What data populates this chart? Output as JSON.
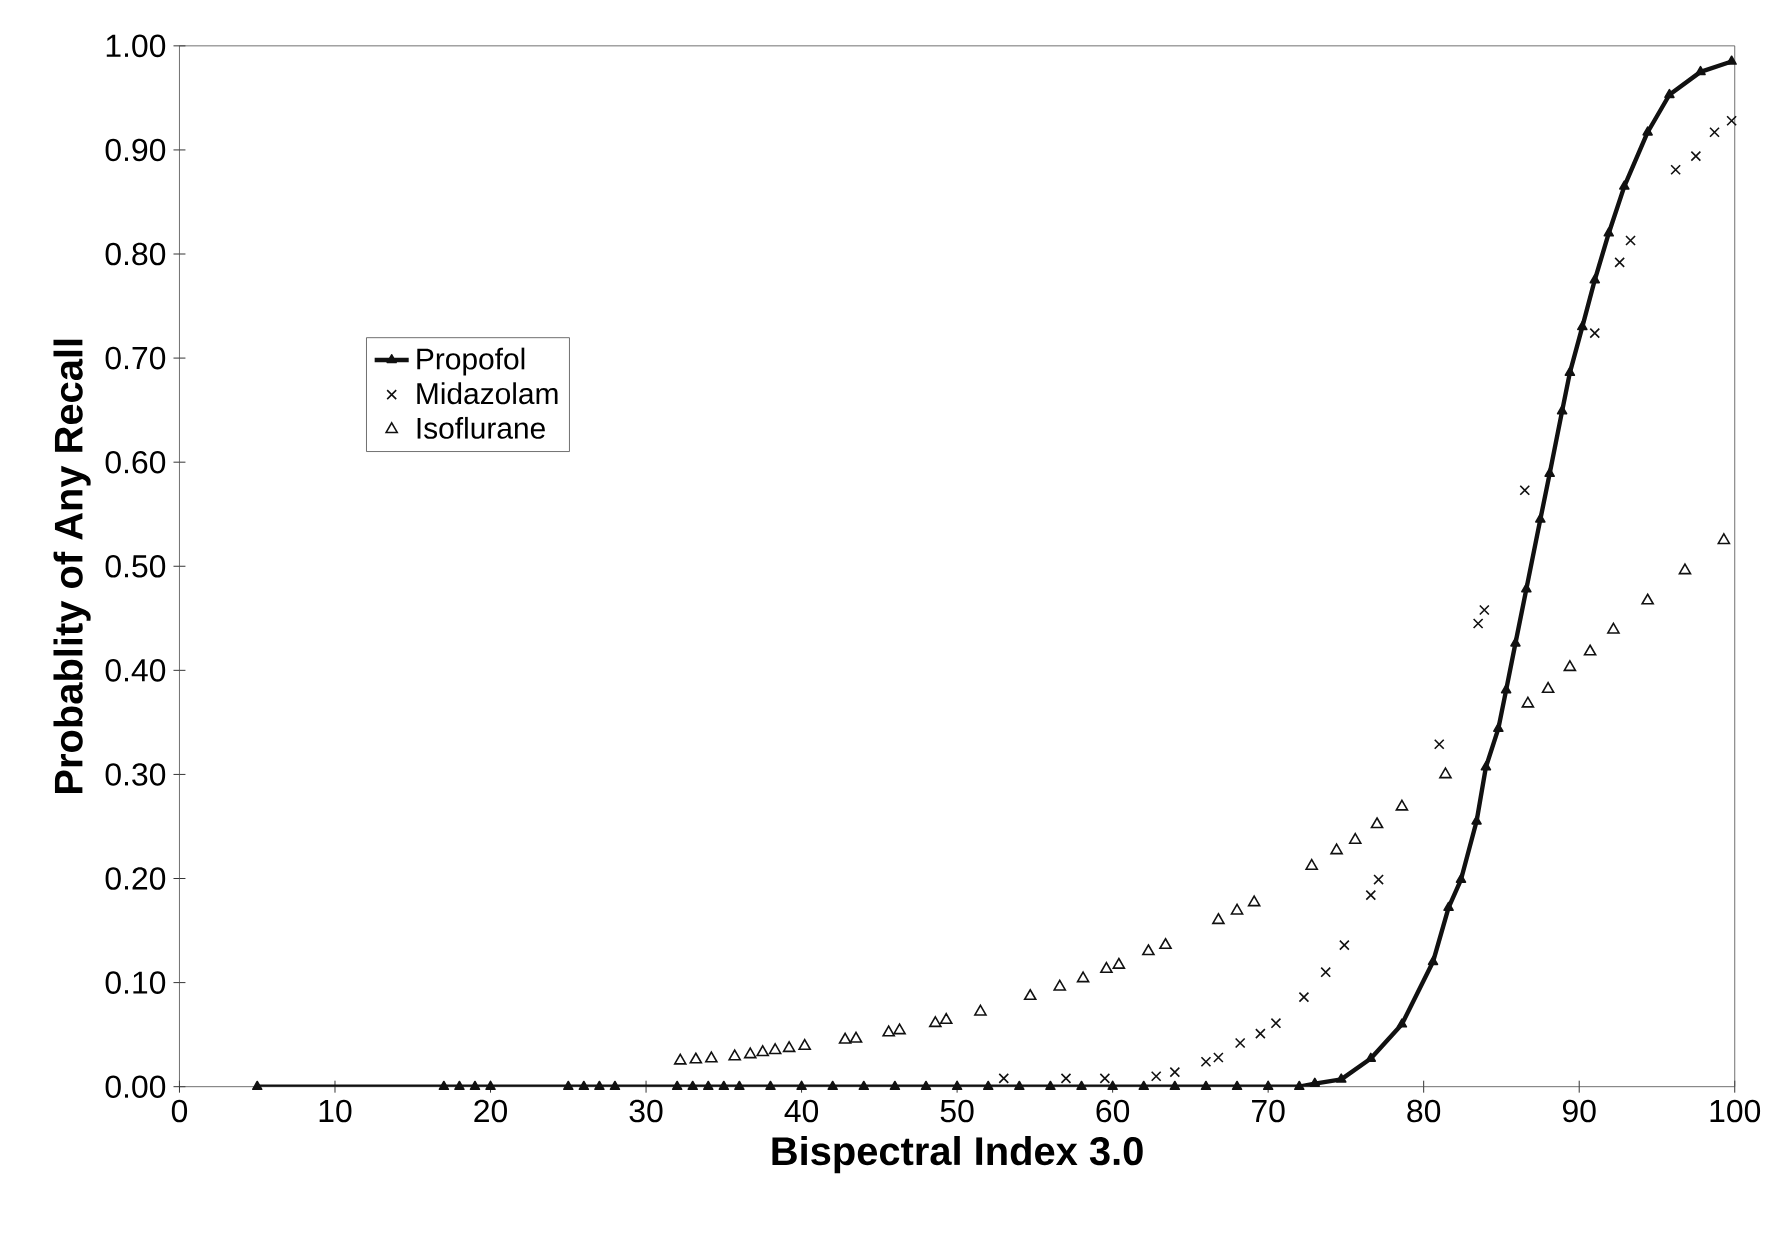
{
  "chart_data": {
    "type": "scatter",
    "xlabel": "Bispectral Index 3.0",
    "ylabel": "Probablity of Any Recall",
    "xlim": [
      0,
      100
    ],
    "ylim": [
      0,
      1
    ],
    "xticks": [
      0,
      10,
      20,
      30,
      40,
      50,
      60,
      70,
      80,
      90,
      100
    ],
    "yticks": [
      {
        "value": 0,
        "label": "0.00"
      },
      {
        "value": 0.1,
        "label": "0.10"
      },
      {
        "value": 0.2,
        "label": "0.20"
      },
      {
        "value": 0.3,
        "label": "0.30"
      },
      {
        "value": 0.4,
        "label": "0.40"
      },
      {
        "value": 0.5,
        "label": "0.50"
      },
      {
        "value": 0.6,
        "label": "0.60"
      },
      {
        "value": 0.7,
        "label": "0.70"
      },
      {
        "value": 0.8,
        "label": "0.80"
      },
      {
        "value": 0.9,
        "label": "0.90"
      },
      {
        "value": 1.0,
        "label": "1.00"
      }
    ],
    "legend": "left",
    "grid": false,
    "series": [
      {
        "name": "Propofol",
        "type": "line",
        "line_style": "solid",
        "color": "#111111",
        "marker": "triangle",
        "x": [
          5,
          17,
          18,
          19,
          20,
          25,
          26,
          27,
          28,
          32,
          33,
          34,
          35,
          36,
          38,
          40,
          42,
          44,
          46,
          48,
          50,
          52,
          54,
          56,
          58,
          60,
          62,
          64,
          66,
          68,
          70,
          72,
          73,
          74.7,
          76.6,
          78.6,
          80.6,
          81.6,
          82.4,
          83.4,
          84.0,
          84.8,
          85.3,
          85.9,
          86.6,
          87.5,
          88.1,
          88.9,
          89.4,
          90.2,
          91.0,
          91.9,
          92.9,
          94.4,
          95.8,
          97.8,
          99.8
        ],
        "values": [
          0,
          0,
          0,
          0,
          0,
          0,
          0,
          0,
          0,
          0,
          0,
          0,
          0,
          0,
          0,
          0,
          0,
          0,
          0,
          0,
          0,
          0,
          0,
          0,
          0,
          0,
          0,
          0,
          0,
          0,
          0,
          0,
          0.003,
          0.007,
          0.027,
          0.06,
          0.12,
          0.172,
          0.199,
          0.255,
          0.307,
          0.344,
          0.381,
          0.426,
          0.478,
          0.545,
          0.589,
          0.649,
          0.686,
          0.73,
          0.775,
          0.82,
          0.865,
          0.917,
          0.953,
          0.975,
          0.985
        ]
      },
      {
        "name": "Midazolam",
        "color": "#111111",
        "marker": "cross",
        "x": [
          53,
          57,
          59.5,
          62.8,
          64.0,
          66.0,
          66.8,
          68.2,
          69.5,
          70.5,
          72.3,
          73.7,
          74.9,
          76.6,
          77.1,
          81.0,
          83.5,
          83.9,
          86.5,
          91.0,
          92.6,
          93.3,
          96.2,
          97.5,
          98.7,
          99.8
        ],
        "values": [
          0.008,
          0.008,
          0.008,
          0.01,
          0.014,
          0.024,
          0.028,
          0.042,
          0.051,
          0.061,
          0.086,
          0.11,
          0.136,
          0.184,
          0.199,
          0.329,
          0.445,
          0.458,
          0.573,
          0.724,
          0.792,
          0.813,
          0.881,
          0.894,
          0.917,
          0.928
        ]
      },
      {
        "name": "Isoflurane",
        "color": "#111111",
        "marker": "triangle",
        "x": [
          32.2,
          33.2,
          34.2,
          35.7,
          36.7,
          37.5,
          38.3,
          39.2,
          40.2,
          42.8,
          43.5,
          45.6,
          46.3,
          48.6,
          49.3,
          51.5,
          54.7,
          56.6,
          58.1,
          59.6,
          60.4,
          62.3,
          63.4,
          66.8,
          68.0,
          69.1,
          72.8,
          74.4,
          75.6,
          77.0,
          78.6,
          81.4,
          86.7,
          88.0,
          89.4,
          90.7,
          92.2,
          94.4,
          96.8,
          99.3
        ],
        "values": [
          0.025,
          0.026,
          0.027,
          0.029,
          0.031,
          0.033,
          0.035,
          0.037,
          0.039,
          0.045,
          0.046,
          0.052,
          0.054,
          0.061,
          0.064,
          0.072,
          0.087,
          0.096,
          0.104,
          0.113,
          0.117,
          0.13,
          0.136,
          0.16,
          0.169,
          0.177,
          0.212,
          0.227,
          0.237,
          0.252,
          0.269,
          0.3,
          0.368,
          0.382,
          0.403,
          0.418,
          0.439,
          0.467,
          0.496,
          0.525
        ]
      }
    ]
  }
}
